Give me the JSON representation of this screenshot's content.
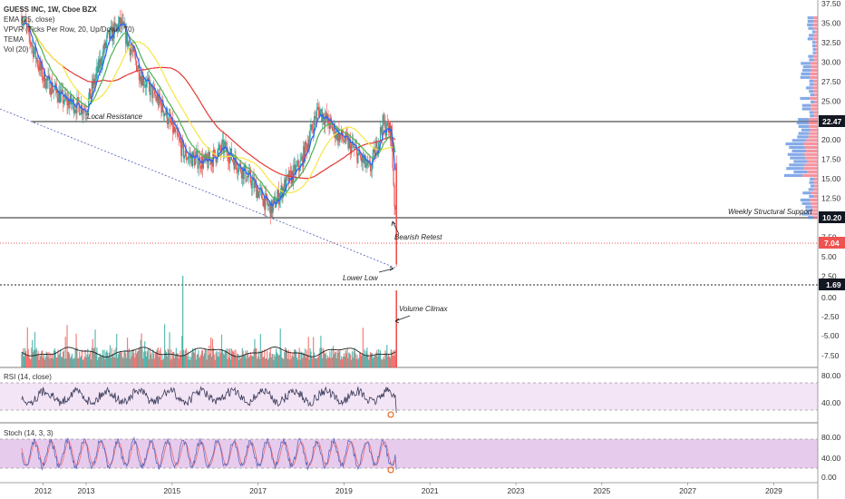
{
  "legend": {
    "title": "GUESS INC, 1W, Cboe BZX",
    "ema": "EMA (25, close)",
    "vpvr": "VPVR (Ticks Per Row, 20, Up/Down, 70)",
    "tema": "TEMA",
    "vol": "Vol (20)"
  },
  "annotations": {
    "local_resistance": "Local Resistance",
    "weekly_support": "Weekly Structural Support",
    "bearish_retest": "Bearish Retest",
    "lower_low": "Lower Low",
    "volume_climax": "Volume Climax"
  },
  "price_tags": {
    "resistance": "22.47",
    "support": "10.20",
    "last": "7.04",
    "low": "1.69"
  },
  "rsi_label": "RSI (14, close)",
  "stoch_label": "Stoch (14, 3, 3)",
  "colors": {
    "up": "#26a69a",
    "down": "#ef5350",
    "ema_blue": "#2962ff",
    "ema_green": "#4caf50",
    "yellow": "#f5e642",
    "sma_red": "#e53935",
    "vpvr_up": "#5c8ee0",
    "vpvr_down": "#f07080",
    "osc_band": "#e1bee7",
    "rsi_line": "#3a3a5a"
  },
  "chart_data": {
    "type": "line",
    "x_ticks": [
      "2012",
      "2013",
      "2015",
      "2017",
      "2019",
      "2021",
      "2023",
      "2025",
      "2027",
      "2029"
    ],
    "price_axis": [
      "37.50",
      "35.00",
      "32.50",
      "30.00",
      "27.50",
      "25.00",
      "22.50",
      "20.00",
      "17.50",
      "15.00",
      "12.50",
      "10.00",
      "7.50",
      "5.00",
      "2.50"
    ],
    "volume_axis": [
      "0.00",
      "-2.50",
      "-5.00",
      "-7.50"
    ],
    "rsi_axis": [
      "80.00",
      "40.00"
    ],
    "stoch_axis": [
      "80.00",
      "40.00",
      "0.00"
    ],
    "price_series": {
      "x": [
        2011.5,
        2012.0,
        2012.5,
        2013.0,
        2013.5,
        2013.8,
        2014.3,
        2014.8,
        2015.3,
        2015.8,
        2016.2,
        2016.8,
        2017.3,
        2017.6,
        2018.0,
        2018.4,
        2018.8,
        2019.2,
        2019.6,
        2019.9,
        2020.1,
        2020.2,
        2020.25
      ],
      "y": [
        36,
        28,
        25,
        24,
        33,
        35,
        28,
        24,
        18,
        17,
        19,
        15,
        11,
        14,
        17,
        24,
        21,
        19,
        16,
        22,
        21,
        9,
        4
      ]
    },
    "local_resistance": 22.47,
    "weekly_support": 10.2,
    "last_price": 7.04,
    "low_level": 1.69
  }
}
